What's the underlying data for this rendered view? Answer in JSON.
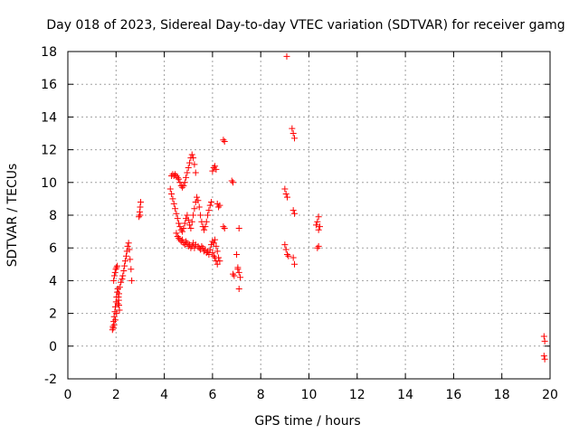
{
  "chart_data": {
    "type": "scatter",
    "title": "Day 018 of 2023, Sidereal Day-to-day VTEC variation (SDTVAR) for receiver gamg",
    "xlabel": "GPS time / hours",
    "ylabel": "SDTVAR / TECUs",
    "xlim": [
      0,
      20
    ],
    "ylim": [
      -2,
      18
    ],
    "xticks": [
      0,
      2,
      4,
      6,
      8,
      10,
      12,
      14,
      16,
      18,
      20
    ],
    "yticks": [
      -2,
      0,
      2,
      4,
      6,
      8,
      10,
      12,
      14,
      16,
      18
    ],
    "grid": true,
    "marker": "+",
    "color": "#ff0000",
    "series": [
      {
        "name": "SDTVAR",
        "x": [
          1.85,
          1.87,
          1.9,
          1.92,
          1.95,
          1.97,
          2.0,
          2.02,
          2.05,
          2.07,
          2.1,
          2.12,
          1.9,
          1.93,
          1.96,
          1.99,
          2.02,
          2.05,
          2.08,
          2.11,
          2.14,
          1.88,
          1.92,
          1.97,
          2.02,
          2.07,
          2.12,
          2.15,
          2.2,
          2.25,
          2.28,
          2.32,
          2.35,
          2.38,
          2.42,
          2.45,
          2.48,
          2.52,
          2.55,
          2.58,
          2.62,
          2.65,
          2.95,
          2.98,
          3.0,
          3.02,
          3.0,
          4.3,
          4.35,
          4.4,
          4.45,
          4.5,
          4.55,
          4.6,
          4.65,
          4.7,
          4.75,
          4.8,
          4.85,
          4.9,
          4.95,
          5.0,
          5.05,
          5.1,
          5.15,
          5.2,
          5.25,
          5.3,
          4.25,
          4.3,
          4.35,
          4.4,
          4.45,
          4.5,
          4.55,
          4.6,
          4.65,
          4.7,
          4.75,
          4.8,
          4.85,
          4.9,
          4.95,
          5.0,
          5.05,
          5.1,
          5.15,
          5.2,
          5.25,
          5.3,
          5.35,
          5.4,
          5.45,
          5.5,
          5.55,
          5.6,
          5.65,
          5.7,
          5.75,
          5.8,
          5.85,
          5.9,
          5.95,
          6.0,
          6.05,
          6.1,
          6.15,
          6.2,
          6.25,
          6.3,
          4.5,
          4.55,
          4.6,
          4.65,
          4.7,
          4.75,
          4.8,
          4.85,
          4.9,
          4.95,
          5.0,
          5.05,
          5.1,
          5.15,
          5.2,
          5.25,
          5.3,
          5.4,
          5.45,
          5.5,
          5.55,
          5.6,
          5.65,
          5.7,
          5.75,
          5.8,
          5.85,
          5.9,
          5.95,
          6.0,
          6.05,
          6.1,
          6.15,
          6.2,
          6.25,
          6.3,
          6.0,
          6.05,
          6.1,
          6.15,
          6.2,
          6.45,
          6.5,
          6.8,
          6.85,
          7.0,
          7.05,
          7.1,
          7.15,
          7.1,
          6.45,
          6.5,
          6.85,
          6.9,
          7.05,
          7.1,
          9.0,
          9.05,
          9.1,
          9.0,
          9.05,
          9.1,
          9.15,
          9.3,
          9.35,
          9.4,
          9.35,
          9.4,
          9.35,
          9.4,
          9.08,
          10.3,
          10.35,
          10.4,
          10.45,
          10.35,
          10.4,
          10.4,
          19.75,
          19.78,
          19.75,
          19.78
        ],
        "y": [
          1.0,
          1.2,
          1.5,
          1.8,
          2.1,
          2.4,
          2.7,
          3.0,
          3.3,
          3.5,
          3.0,
          2.5,
          4.0,
          4.3,
          4.5,
          4.7,
          4.8,
          4.9,
          3.5,
          2.8,
          2.2,
          1.1,
          1.3,
          1.6,
          2.0,
          2.6,
          3.2,
          3.6,
          3.9,
          4.1,
          4.3,
          4.6,
          4.9,
          5.2,
          5.5,
          5.8,
          6.1,
          6.3,
          5.9,
          5.3,
          4.7,
          4.0,
          7.9,
          8.2,
          8.5,
          8.8,
          8.0,
          10.4,
          10.5,
          10.4,
          10.5,
          10.4,
          10.3,
          10.2,
          10.0,
          9.8,
          9.7,
          9.8,
          10.0,
          10.3,
          10.6,
          10.9,
          11.2,
          11.5,
          11.7,
          11.5,
          11.1,
          10.6,
          9.6,
          9.3,
          9.0,
          8.7,
          8.4,
          8.1,
          7.8,
          7.5,
          7.3,
          7.1,
          7.0,
          7.2,
          7.5,
          7.8,
          8.0,
          7.7,
          7.4,
          7.2,
          7.6,
          8.0,
          8.4,
          8.8,
          9.1,
          8.9,
          8.5,
          8.0,
          7.6,
          7.3,
          7.1,
          7.3,
          7.6,
          8.0,
          8.3,
          8.6,
          8.8,
          10.7,
          10.9,
          11.0,
          10.8,
          8.7,
          8.5,
          8.6,
          6.9,
          6.7,
          6.6,
          6.5,
          6.4,
          6.5,
          6.3,
          6.2,
          6.4,
          6.3,
          6.1,
          6.2,
          6.0,
          6.1,
          6.3,
          6.0,
          6.2,
          6.1,
          6.0,
          5.9,
          6.1,
          6.0,
          5.8,
          5.9,
          5.7,
          5.8,
          5.6,
          5.9,
          6.2,
          6.4,
          6.3,
          6.5,
          6.1,
          5.8,
          5.4,
          5.2,
          5.7,
          5.5,
          5.4,
          5.2,
          5.0,
          7.3,
          7.2,
          10.1,
          10.0,
          5.6,
          4.8,
          4.5,
          4.2,
          3.5,
          12.6,
          12.5,
          4.4,
          4.3,
          4.7,
          7.2,
          9.6,
          9.3,
          9.1,
          6.2,
          5.9,
          5.6,
          5.5,
          13.3,
          13.0,
          12.7,
          8.3,
          8.1,
          5.4,
          5.0,
          17.7,
          7.4,
          7.6,
          7.9,
          7.3,
          6.0,
          6.1,
          7.1,
          0.6,
          0.3,
          -0.6,
          -0.8
        ]
      }
    ]
  }
}
